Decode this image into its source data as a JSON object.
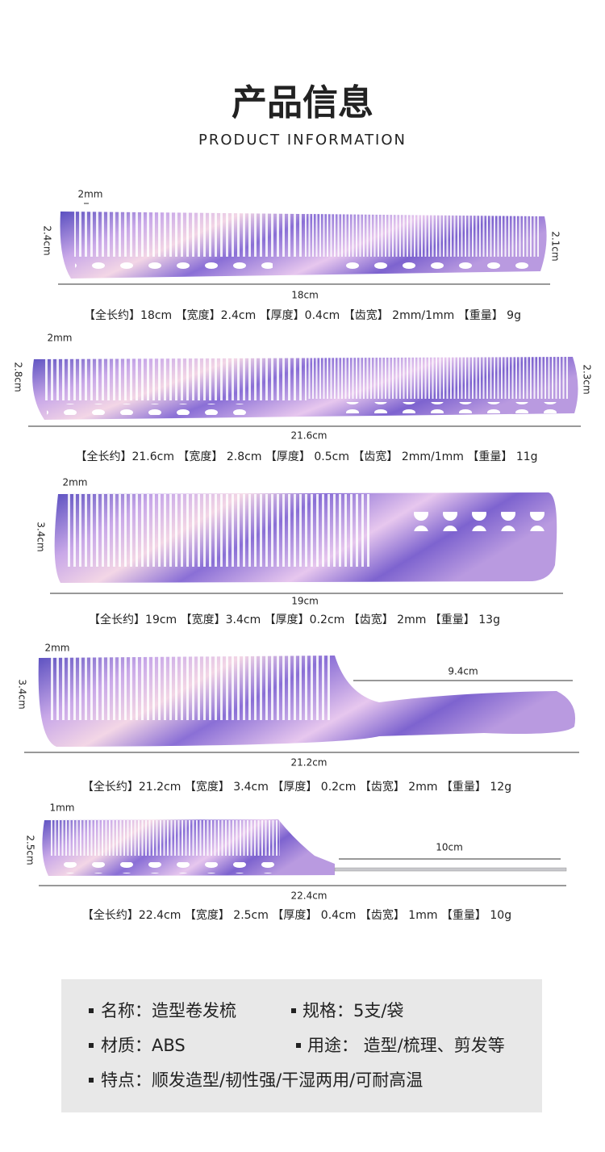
{
  "header": {
    "title": "产品信息",
    "subtitle": "PRODUCT INFORMATION"
  },
  "combs": [
    {
      "tooth_label": "2mm",
      "height_label": "2.4cm",
      "end_label": "2.1cm",
      "length_label": "18cm",
      "specs": "【全长约】18cm 【宽度】2.4cm 【厚度】0.4cm 【齿宽】 2mm/1mm 【重量】 9g"
    },
    {
      "tooth_label": "2mm",
      "height_label": "2.8cm",
      "end_label": "2.3cm",
      "length_label": "21.6cm",
      "specs": "【全长约】21.6cm 【宽度】 2.8cm 【厚度】 0.5cm 【齿宽】 2mm/1mm 【重量】 11g"
    },
    {
      "tooth_label": "2mm",
      "height_label": "3.4cm",
      "length_label": "19cm",
      "specs": "【全长约】19cm 【宽度】3.4cm 【厚度】0.2cm 【齿宽】 2mm 【重量】 13g"
    },
    {
      "tooth_label": "2mm",
      "height_label": "3.4cm",
      "handle_label": "9.4cm",
      "length_label": "21.2cm",
      "specs": "【全长约】21.2cm 【宽度】 3.4cm 【厚度】 0.2cm 【齿宽】 2mm 【重量】 12g"
    },
    {
      "tooth_label": "1mm",
      "height_label": "2.5cm",
      "pin_label": "10cm",
      "length_label": "22.4cm",
      "specs": "【全长约】22.4cm 【宽度】 2.5cm 【厚度】 0.4cm 【齿宽】 1mm 【重量】 10g"
    }
  ],
  "info": {
    "items": [
      "名称：造型卷发梳",
      "规格：5支/袋",
      "材质：ABS",
      "用途： 造型/梳理、剪发等",
      "特点：顺发造型/韧性强/干湿两用/可耐高温"
    ]
  }
}
